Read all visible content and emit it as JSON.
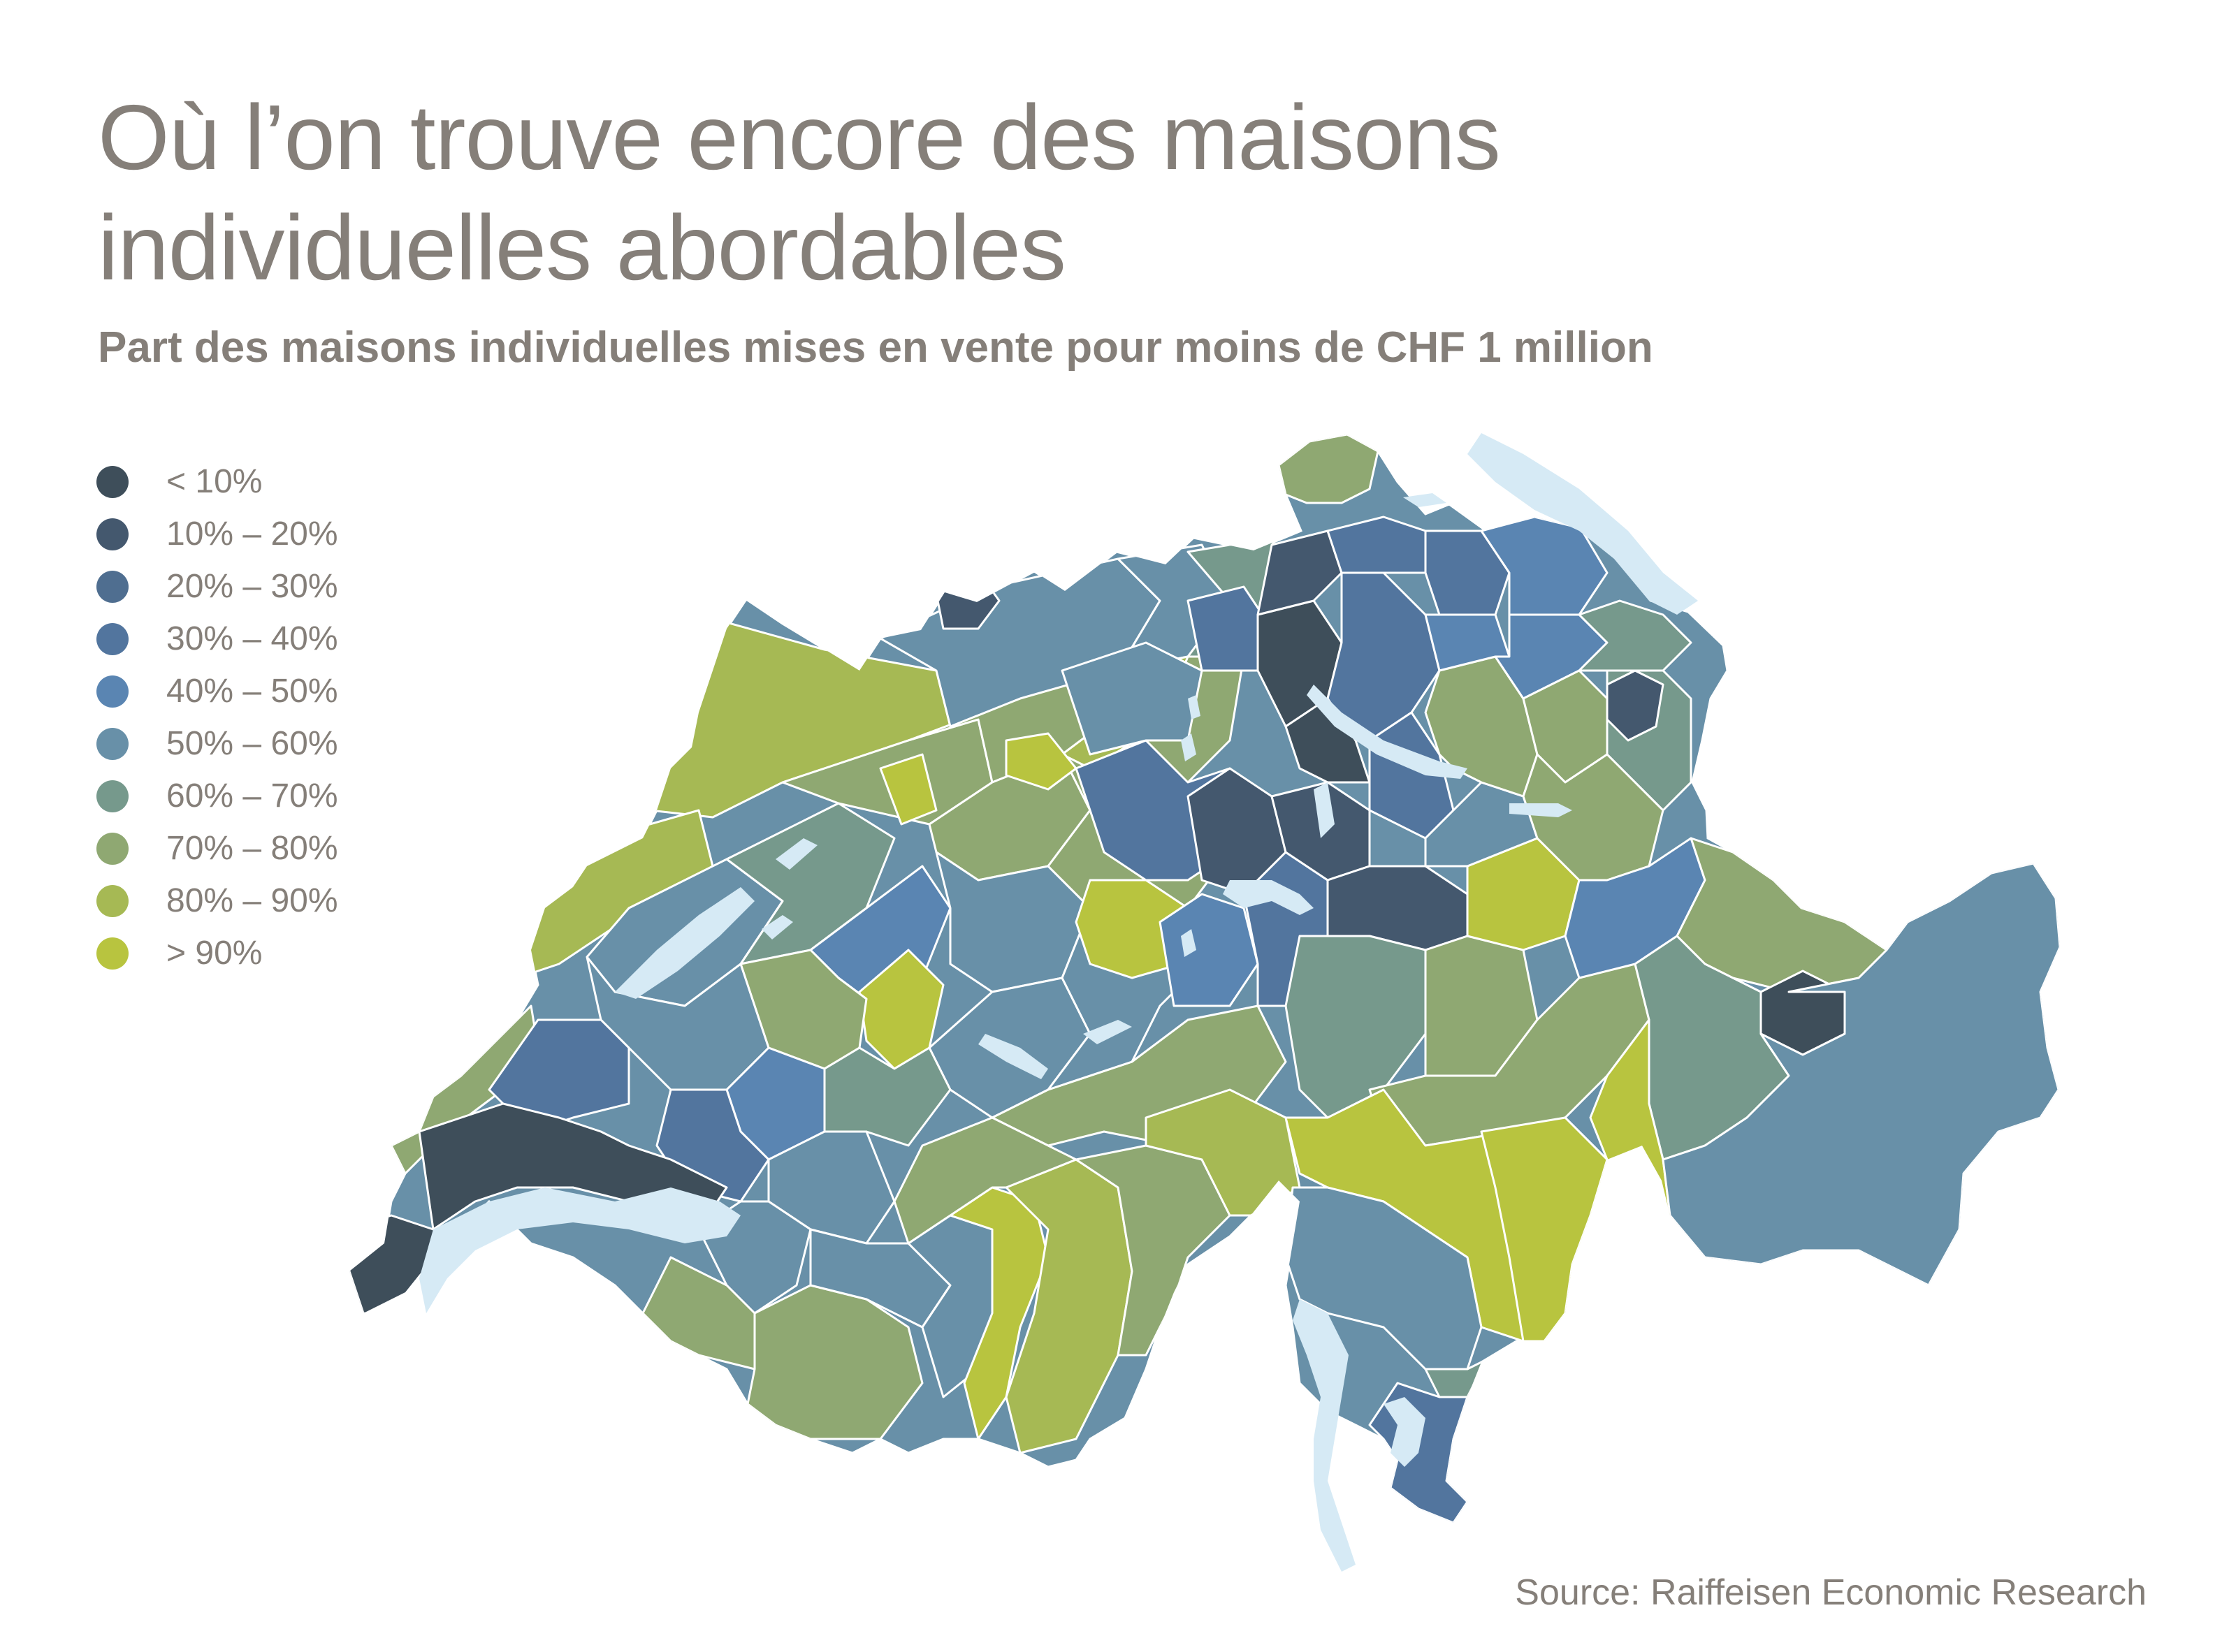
{
  "title": {
    "line1": "Où l’on trouve encore des maisons",
    "line2": "individuelles abordables"
  },
  "subtitle": "Part des maisons individuelles mises en vente pour moins de CHF 1 million",
  "source": "Source: Raiffeisen Economic Research",
  "legend": [
    {
      "label": "< 10%",
      "color": "#3e4e5a"
    },
    {
      "label": "10% – 20%",
      "color": "#44586e"
    },
    {
      "label": "20% – 30%",
      "color": "#4f6e90"
    },
    {
      "label": "30% – 40%",
      "color": "#52759e"
    },
    {
      "label": "40% – 50%",
      "color": "#5a85b2"
    },
    {
      "label": "50% – 60%",
      "color": "#6890a8"
    },
    {
      "label": "60% – 70%",
      "color": "#76998c"
    },
    {
      "label": "70% – 80%",
      "color": "#8fa872"
    },
    {
      "label": "80% – 90%",
      "color": "#a6b954"
    },
    {
      "label": "> 90%",
      "color": "#b8c43f"
    }
  ],
  "colors": {
    "text": "#857f79",
    "lake": "#d6eaf5",
    "border": "#ffffff"
  }
}
